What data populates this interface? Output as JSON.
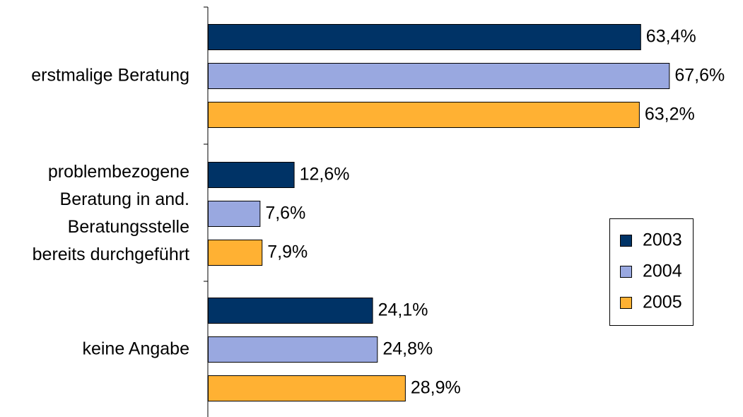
{
  "chart_data": {
    "type": "bar",
    "orientation": "horizontal",
    "title": "",
    "xlabel": "",
    "ylabel": "",
    "xlim": [
      0,
      100
    ],
    "grid": false,
    "legend_position": "right",
    "categories": [
      "erstmalige Beratung",
      "problembezogene Beratung in and. Beratungsstelle bereits durchgeführt",
      "keine Angabe"
    ],
    "category_lines": [
      [
        "erstmalige Beratung"
      ],
      [
        "problembezogene",
        "Beratung in and.",
        "Beratungsstelle",
        "bereits durchgeführt"
      ],
      [
        "keine Angabe"
      ]
    ],
    "series": [
      {
        "name": "2003",
        "color": "#003366",
        "values": [
          63.4,
          12.6,
          24.1
        ],
        "labels": [
          "63,4%",
          "12,6%",
          "24,1%"
        ]
      },
      {
        "name": "2004",
        "color": "#99A8E0",
        "values": [
          67.6,
          7.6,
          24.8
        ],
        "labels": [
          "67,6%",
          "7,6%",
          "24,8%"
        ]
      },
      {
        "name": "2005",
        "color": "#FFB133",
        "values": [
          63.2,
          7.9,
          28.9
        ],
        "labels": [
          "63,2%",
          "7,9%",
          "28,9%"
        ]
      }
    ]
  }
}
